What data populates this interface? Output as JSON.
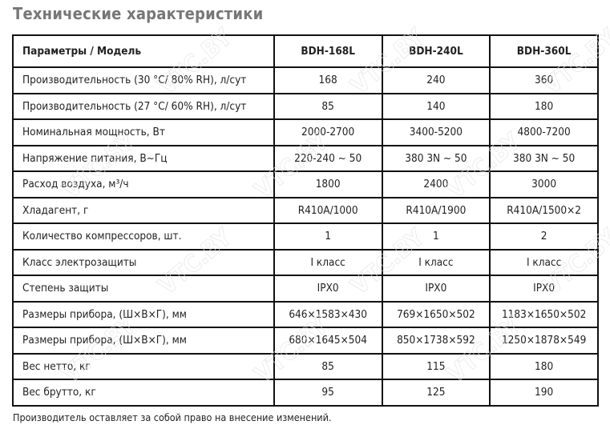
{
  "title": "Технические характеристики",
  "header": [
    "Параметры / Модель",
    "BDH-168L",
    "BDH-240L",
    "BDH-360L"
  ],
  "rows": [
    [
      "Производительность (30 °C/ 80% RH), л/сут",
      "168",
      "240",
      "360"
    ],
    [
      "Производительность (27 °C/ 60% RH), л/сут",
      "85",
      "140",
      "180"
    ],
    [
      "Номинальная мощность, Вт",
      "2000-2700",
      "3400-5200",
      "4800-7200"
    ],
    [
      "Напряжение питания, В~Гц",
      "220-240 ~ 50",
      "380 3N ~ 50",
      "380 3N ~ 50"
    ],
    [
      "Расход воздуха, м³/ч",
      "1800",
      "2400",
      "3000"
    ],
    [
      "Хладагент, г",
      "R410A/1000",
      "R410A/1900",
      "R410A/1500×2"
    ],
    [
      "Количество компрессоров, шт.",
      "1",
      "1",
      "2"
    ],
    [
      "Класс электрозащиты",
      "I класс",
      "I класс",
      "I класс"
    ],
    [
      "Степень защиты",
      "IPX0",
      "IPX0",
      "IPX0"
    ],
    [
      "Размеры прибора, (Ш×В×Г), мм",
      "646×1583×430",
      "769×1650×502",
      "1183×1650×502"
    ],
    [
      "Размеры прибора, (Ш×В×Г), мм",
      "680×1645×504",
      "850×1738×592",
      "1250×1878×549"
    ],
    [
      "Вес нетто, кг",
      "85",
      "115",
      "180"
    ],
    [
      "Вес брутто, кг",
      "95",
      "125",
      "190"
    ]
  ],
  "footnote": "Производитель оставляет за собой право на внесение изменений.",
  "watermark": "VTC.BY"
}
